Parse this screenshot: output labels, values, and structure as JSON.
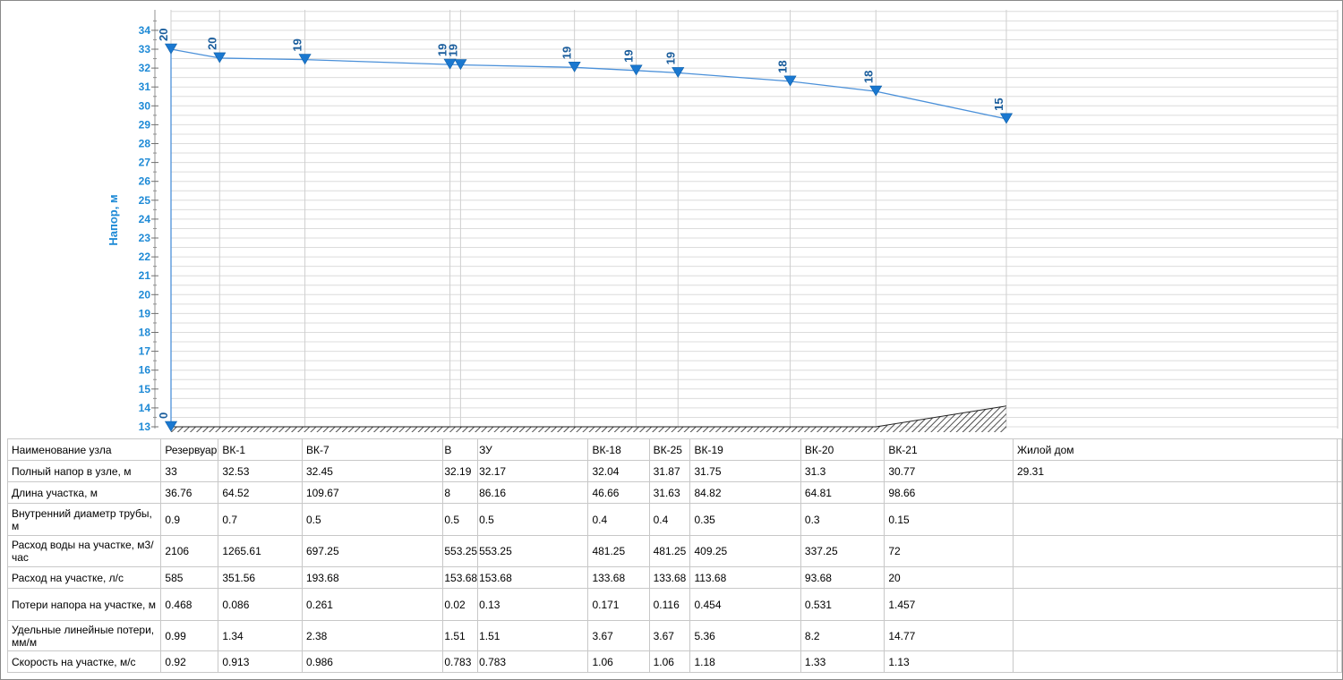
{
  "chart_data": {
    "type": "line",
    "ylabel": "Напор, м",
    "ylim": [
      13,
      35
    ],
    "yticks": [
      13,
      14,
      15,
      16,
      17,
      18,
      19,
      20,
      21,
      22,
      23,
      24,
      25,
      26,
      27,
      28,
      29,
      30,
      31,
      32,
      33,
      34
    ],
    "grid": true,
    "line_color": "#4a90d9",
    "marker_color": "#1a78d0",
    "label_color": "#1a5d9c",
    "ground_level": 13,
    "nodes": [
      {
        "name": "Резервуар",
        "x": 0,
        "head": 33,
        "free_head": "20"
      },
      {
        "name": "ВК-1",
        "x": 36.76,
        "head": 32.53,
        "free_head": "20"
      },
      {
        "name": "ВК-7",
        "x": 101.28,
        "head": 32.45,
        "free_head": "19"
      },
      {
        "name": "В",
        "x": 210.95,
        "head": 32.19,
        "free_head": "19"
      },
      {
        "name": "ЗУ",
        "x": 218.95,
        "head": 32.17,
        "free_head": "19"
      },
      {
        "name": "ВК-18",
        "x": 305.11,
        "head": 32.04,
        "free_head": "19"
      },
      {
        "name": "ВК-25",
        "x": 351.77,
        "head": 31.87,
        "free_head": "19"
      },
      {
        "name": "ВК-19",
        "x": 383.4,
        "head": 31.75,
        "free_head": "19"
      },
      {
        "name": "ВК-20",
        "x": 468.22,
        "head": 31.3,
        "free_head": "18"
      },
      {
        "name": "ВК-21",
        "x": 533.03,
        "head": 30.77,
        "free_head": "18"
      },
      {
        "name": "Жилой дом",
        "x": 631.69,
        "head": 29.31,
        "free_head": "15"
      }
    ],
    "start_marker": {
      "head": 13,
      "label": "0"
    },
    "ground_profile": [
      {
        "x": 0,
        "level": 13
      },
      {
        "x": 533.03,
        "level": 13
      },
      {
        "x": 631.69,
        "level": 14.1
      }
    ]
  },
  "table": {
    "rows": [
      {
        "label": "Наименование узла",
        "cells": [
          "Резервуар",
          "ВК-1",
          "ВК-7",
          "В",
          "ЗУ",
          "ВК-18",
          "ВК-25",
          "ВК-19",
          "ВК-20",
          "ВК-21",
          "Жилой дом"
        ]
      },
      {
        "label": "Полный напор в узле, м",
        "cells": [
          "33",
          "32.53",
          "32.45",
          "32.19",
          "32.17",
          "32.04",
          "31.87",
          "31.75",
          "31.3",
          "30.77",
          "29.31"
        ]
      },
      {
        "label": "Длина участка, м",
        "cells": [
          "36.76",
          "64.52",
          "109.67",
          "8",
          "86.16",
          "46.66",
          "31.63",
          "84.82",
          "64.81",
          "98.66",
          ""
        ]
      },
      {
        "label": "Внутренний диаметр трубы, м",
        "cells": [
          "0.9",
          "0.7",
          "0.5",
          "0.5",
          "0.5",
          "0.4",
          "0.4",
          "0.35",
          "0.3",
          "0.15",
          ""
        ]
      },
      {
        "label": "Расход воды на участке, м3/час",
        "cells": [
          "2106",
          "1265.61",
          "697.25",
          "553.25",
          "553.25",
          "481.25",
          "481.25",
          "409.25",
          "337.25",
          "72",
          ""
        ]
      },
      {
        "label": "Расход на участке, л/с",
        "cells": [
          "585",
          "351.56",
          "193.68",
          "153.68",
          "153.68",
          "133.68",
          "133.68",
          "113.68",
          "93.68",
          "20",
          ""
        ]
      },
      {
        "label": "Потери напора на участке, м",
        "cells": [
          "0.468",
          "0.086",
          "0.261",
          "0.02",
          "0.13",
          "0.171",
          "0.116",
          "0.454",
          "0.531",
          "1.457",
          ""
        ]
      },
      {
        "label": "Удельные линейные потери, мм/м",
        "cells": [
          "0.99",
          "1.34",
          "2.38",
          "1.51",
          "1.51",
          "3.67",
          "3.67",
          "5.36",
          "8.2",
          "14.77",
          ""
        ]
      },
      {
        "label": "Скорость на участке, м/с",
        "cells": [
          "0.92",
          "0.913",
          "0.986",
          "0.783",
          "0.783",
          "1.06",
          "1.06",
          "1.18",
          "1.33",
          "1.13",
          ""
        ]
      }
    ]
  }
}
